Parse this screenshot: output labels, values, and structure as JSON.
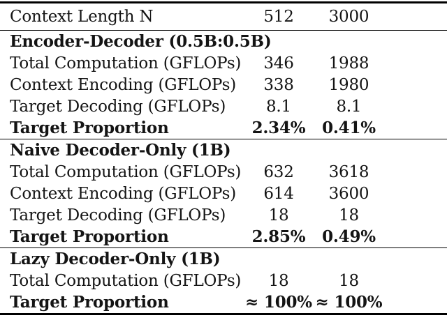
{
  "colors": {
    "background": "#ffffff",
    "text": "#141414",
    "rule": "#000000"
  },
  "table": {
    "header": {
      "label": "Context Length N",
      "cols": [
        "512",
        "3000"
      ]
    },
    "sections": [
      {
        "title": "Encoder-Decoder (0.5B:0.5B)",
        "rows": [
          {
            "label": "Total Computation (GFLOPs)",
            "v1": "346",
            "v2": "1988"
          },
          {
            "label": "Context Encoding (GFLOPs)",
            "v1": "338",
            "v2": "1980"
          },
          {
            "label": "Target Decoding (GFLOPs)",
            "v1": "8.1",
            "v2": "8.1"
          },
          {
            "label": "Target Proportion",
            "v1": "2.34%",
            "v2": "0.41%"
          }
        ]
      },
      {
        "title": "Naive Decoder-Only (1B)",
        "rows": [
          {
            "label": "Total Computation (GFLOPs)",
            "v1": "632",
            "v2": "3618"
          },
          {
            "label": "Context Encoding (GFLOPs)",
            "v1": "614",
            "v2": "3600"
          },
          {
            "label": "Target Decoding (GFLOPs)",
            "v1": "18",
            "v2": "18"
          },
          {
            "label": "Target Proportion",
            "v1": "2.85%",
            "v2": "0.49%"
          }
        ]
      },
      {
        "title": "Lazy Decoder-Only (1B)",
        "rows": [
          {
            "label": "Total Computation (GFLOPs)",
            "v1": "18",
            "v2": "18"
          },
          {
            "label": "Target Proportion",
            "v1": "≈ 100%",
            "v2": "≈ 100%"
          }
        ]
      }
    ]
  }
}
